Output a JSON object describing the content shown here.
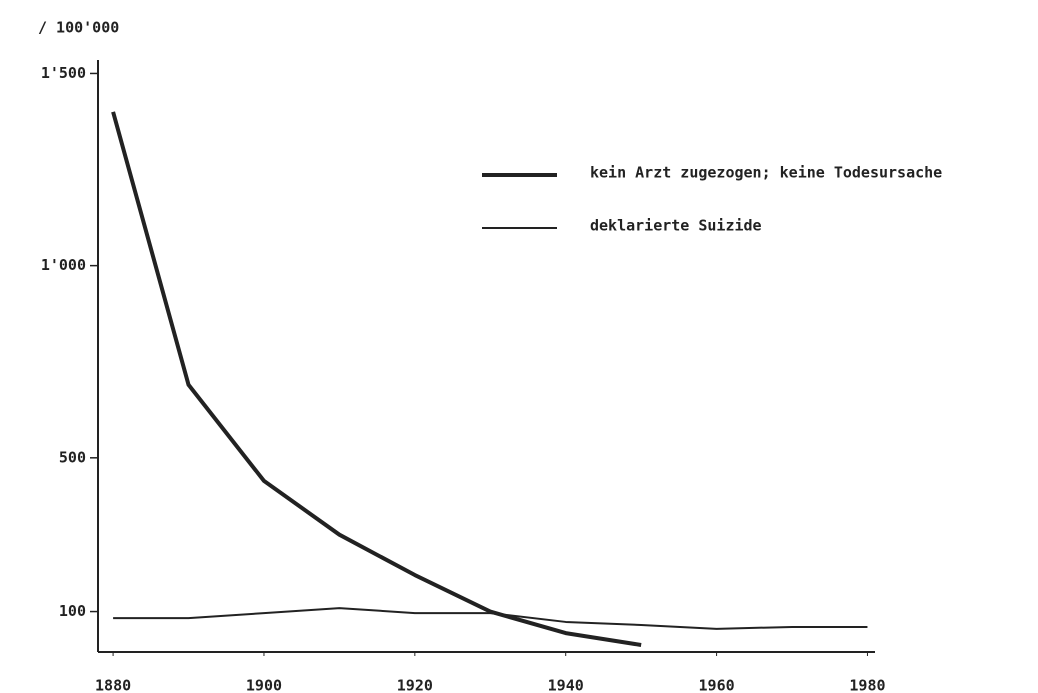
{
  "chart_data": {
    "type": "line",
    "y_label": "/ 100'000",
    "x": [
      1880,
      1890,
      1900,
      1910,
      1920,
      1930,
      1940,
      1950,
      1960,
      1970,
      1980
    ],
    "series": [
      {
        "name": "kein Arzt zugezogen; keine Todesursache",
        "color": "#222222",
        "width": 4,
        "values": [
          1400,
          690,
          440,
          300,
          195,
          100,
          44,
          13,
          null,
          null,
          null
        ]
      },
      {
        "name": "deklarierte Suizide",
        "color": "#222222",
        "width": 2,
        "values": [
          83,
          83,
          96,
          109,
          96,
          96,
          73,
          65,
          55,
          60,
          60
        ]
      }
    ],
    "xlim": [
      1878,
      1981
    ],
    "xticks": [
      1880,
      1900,
      1920,
      1940,
      1960,
      1980
    ],
    "ylim": [
      0,
      1535
    ],
    "yticks": [
      {
        "value": 100,
        "label": "100"
      },
      {
        "value": 500,
        "label": "500"
      },
      {
        "value": 1000,
        "label": "1'000"
      },
      {
        "value": 1500,
        "label": "1'500"
      }
    ],
    "legend": "upper right"
  }
}
